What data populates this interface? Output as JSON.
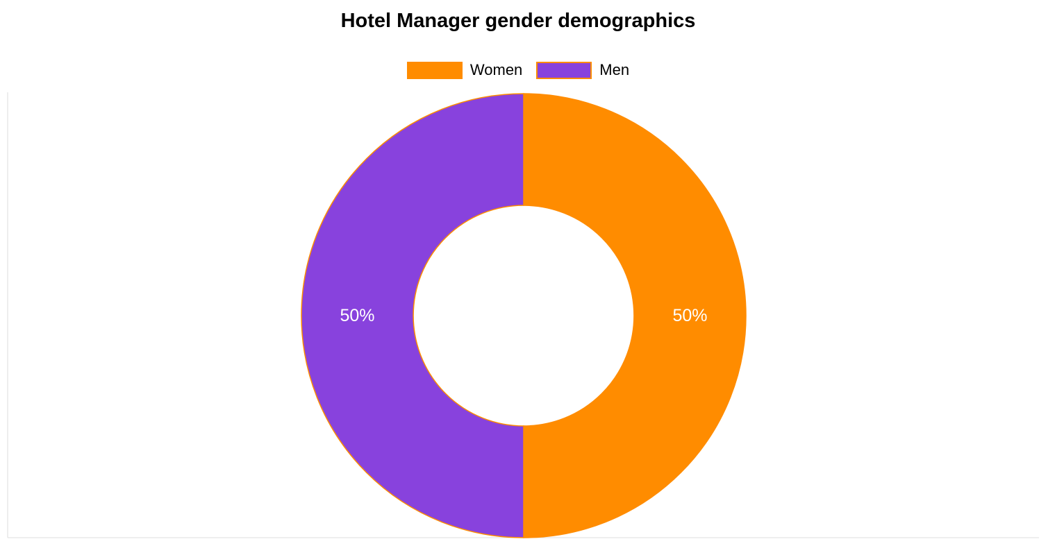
{
  "chart_data": {
    "type": "pie",
    "variant": "doughnut",
    "title": "Hotel Manager gender demographics",
    "legend_position": "top",
    "series": [
      {
        "name": "Women",
        "value": 50,
        "label": "50%",
        "color": "#ff8c00"
      },
      {
        "name": "Men",
        "value": 50,
        "label": "50%",
        "color": "#8842dd"
      }
    ],
    "slice_border_color": "#ff8c00",
    "label_color": "#ffffff"
  }
}
